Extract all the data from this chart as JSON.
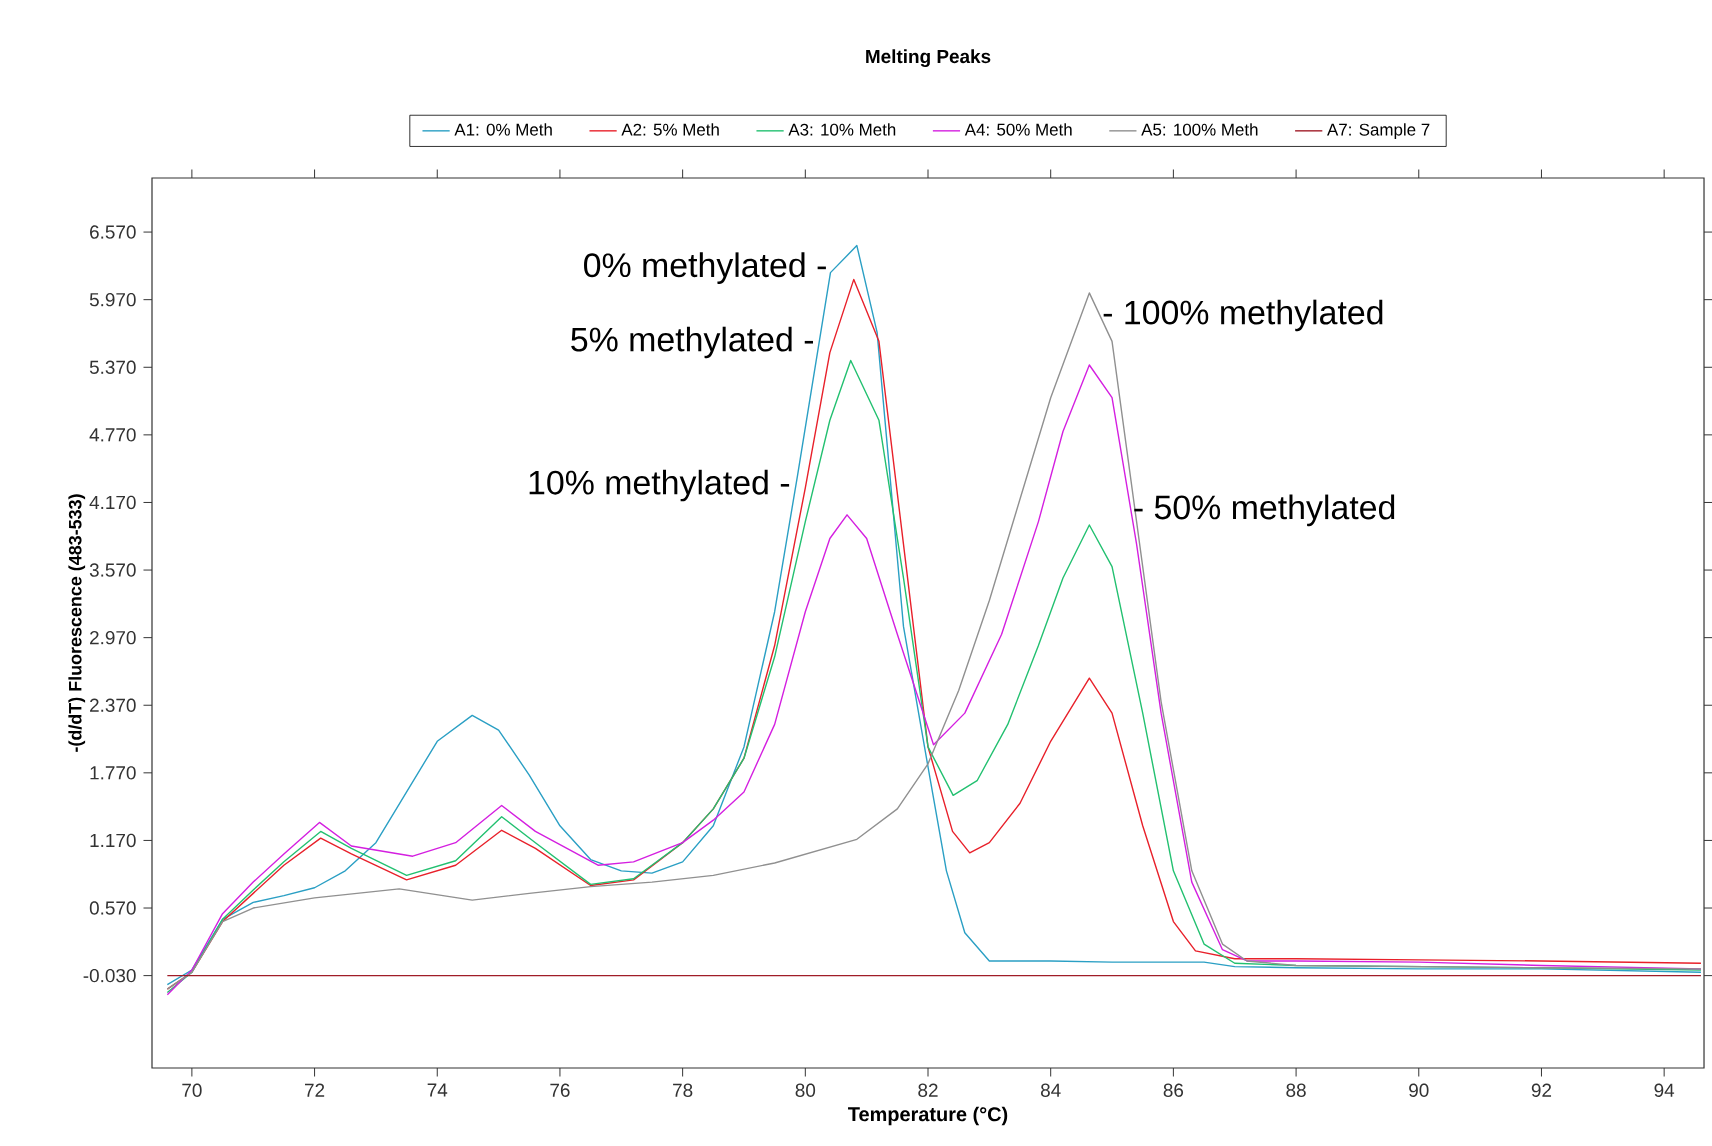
{
  "chart_data": {
    "type": "line",
    "title": "Melting Peaks",
    "xlabel": "Temperature (°C)",
    "ylabel": "-(d/dT) Fluorescence (483-533)",
    "xlim": [
      69.35,
      94.65
    ],
    "ylim": [
      -0.85,
      7.05
    ],
    "xticks": [
      70,
      72,
      74,
      76,
      78,
      80,
      82,
      84,
      86,
      88,
      90,
      92,
      94
    ],
    "yticks": [
      {
        "value": -0.03,
        "label": "-0.030"
      },
      {
        "value": 0.57,
        "label": "0.570"
      },
      {
        "value": 1.17,
        "label": "1.170"
      },
      {
        "value": 1.77,
        "label": "1.770"
      },
      {
        "value": 2.37,
        "label": "2.370"
      },
      {
        "value": 2.97,
        "label": "2.970"
      },
      {
        "value": 3.57,
        "label": "3.570"
      },
      {
        "value": 4.17,
        "label": "4.170"
      },
      {
        "value": 4.77,
        "label": "4.770"
      },
      {
        "value": 5.37,
        "label": "5.370"
      },
      {
        "value": 5.97,
        "label": "5.970"
      },
      {
        "value": 6.57,
        "label": "6.570"
      }
    ],
    "legend": "top",
    "marker": "none",
    "line_style": "solid",
    "series": [
      {
        "name": "A1: 0% Meth",
        "color": "#2a9fc4",
        "x": [
          69.6,
          70.0,
          70.5,
          71.0,
          71.5,
          72.0,
          72.5,
          73.0,
          73.5,
          74.0,
          74.57,
          75.0,
          75.5,
          76.0,
          76.5,
          77.0,
          77.5,
          78.0,
          78.5,
          79.0,
          79.5,
          79.87,
          80.41,
          80.84,
          81.17,
          81.6,
          82.03,
          82.3,
          82.6,
          83.0,
          84.0,
          85.0,
          86.5,
          87.0,
          88,
          90,
          92,
          94.6
        ],
        "values": [
          -0.11,
          0.02,
          0.47,
          0.62,
          0.68,
          0.75,
          0.9,
          1.15,
          1.6,
          2.05,
          2.28,
          2.15,
          1.75,
          1.3,
          1.0,
          0.9,
          0.88,
          0.98,
          1.3,
          2.0,
          3.2,
          4.4,
          6.21,
          6.45,
          5.68,
          3.07,
          1.73,
          0.9,
          0.35,
          0.1,
          0.1,
          0.09,
          0.09,
          0.05,
          0.04,
          0.03,
          0.03,
          0.0
        ]
      },
      {
        "name": "A2: 5% Meth",
        "color": "#e8202a",
        "x": [
          69.6,
          70.0,
          70.5,
          71.0,
          71.5,
          72.1,
          72.6,
          73.5,
          74.3,
          75.05,
          75.6,
          76.5,
          77.2,
          78.0,
          78.5,
          79.0,
          79.5,
          80.0,
          80.4,
          80.79,
          81.2,
          81.6,
          82.0,
          82.4,
          82.68,
          83.0,
          83.5,
          84.0,
          84.63,
          85.0,
          85.5,
          86.0,
          86.36,
          87.0,
          88,
          90,
          92,
          94.6
        ],
        "values": [
          -0.15,
          0.0,
          0.45,
          0.7,
          0.95,
          1.19,
          1.05,
          0.82,
          0.95,
          1.26,
          1.1,
          0.77,
          0.82,
          1.15,
          1.45,
          1.9,
          2.9,
          4.3,
          5.5,
          6.15,
          5.6,
          3.8,
          2.0,
          1.25,
          1.06,
          1.15,
          1.5,
          2.05,
          2.61,
          2.3,
          1.3,
          0.45,
          0.19,
          0.12,
          0.12,
          0.11,
          0.1,
          0.08
        ]
      },
      {
        "name": "A3: 10% Meth",
        "color": "#22c070",
        "x": [
          69.6,
          70.0,
          70.5,
          71.0,
          71.5,
          72.1,
          72.6,
          73.5,
          74.3,
          75.05,
          75.6,
          76.5,
          77.2,
          78.0,
          78.5,
          79.0,
          79.5,
          80.0,
          80.4,
          80.74,
          81.2,
          81.6,
          82.0,
          82.41,
          82.8,
          83.3,
          83.8,
          84.2,
          84.63,
          85.0,
          85.5,
          86.0,
          86.5,
          87.0,
          88,
          90,
          92,
          94.6
        ],
        "values": [
          -0.18,
          0.0,
          0.47,
          0.73,
          0.98,
          1.25,
          1.1,
          0.86,
          0.99,
          1.38,
          1.15,
          0.78,
          0.83,
          1.15,
          1.45,
          1.9,
          2.8,
          4.0,
          4.9,
          5.43,
          4.9,
          3.5,
          2.0,
          1.57,
          1.7,
          2.2,
          2.9,
          3.5,
          3.97,
          3.6,
          2.3,
          0.9,
          0.25,
          0.08,
          0.06,
          0.05,
          0.04,
          0.02
        ]
      },
      {
        "name": "A4: 50% Meth",
        "color": "#d41fe0",
        "x": [
          69.6,
          70.0,
          70.5,
          71.0,
          71.5,
          72.08,
          72.6,
          73.6,
          74.3,
          75.05,
          75.6,
          76.62,
          77.2,
          78.0,
          78.5,
          79.0,
          79.5,
          80.0,
          80.4,
          80.68,
          81.0,
          81.5,
          82.09,
          82.6,
          83.2,
          83.8,
          84.2,
          84.63,
          85.0,
          85.4,
          85.8,
          86.3,
          86.8,
          87.2,
          88,
          90,
          92,
          94.6
        ],
        "values": [
          -0.2,
          0.02,
          0.52,
          0.8,
          1.05,
          1.33,
          1.12,
          1.03,
          1.15,
          1.48,
          1.25,
          0.95,
          0.98,
          1.15,
          1.35,
          1.6,
          2.2,
          3.2,
          3.85,
          4.06,
          3.85,
          3.0,
          2.02,
          2.3,
          3.0,
          4.0,
          4.8,
          5.39,
          5.1,
          3.8,
          2.3,
          0.8,
          0.2,
          0.1,
          0.1,
          0.09,
          0.06,
          0.03
        ]
      },
      {
        "name": "A5: 100% Meth",
        "color": "#909090",
        "x": [
          69.6,
          70.0,
          70.5,
          71.0,
          72.0,
          73.38,
          74.57,
          75.5,
          76.5,
          77.5,
          78.5,
          79.5,
          80.84,
          81.5,
          82.0,
          82.5,
          83.0,
          83.5,
          84.0,
          84.63,
          85.0,
          85.4,
          85.8,
          86.3,
          86.8,
          87.2,
          88,
          90,
          92,
          94.6
        ],
        "values": [
          -0.15,
          0.0,
          0.45,
          0.57,
          0.66,
          0.74,
          0.64,
          0.7,
          0.76,
          0.8,
          0.86,
          0.97,
          1.18,
          1.45,
          1.85,
          2.5,
          3.3,
          4.2,
          5.1,
          6.03,
          5.6,
          4.0,
          2.4,
          0.9,
          0.25,
          0.1,
          0.06,
          0.05,
          0.04,
          0.03
        ]
      },
      {
        "name": "A7: Sample 7",
        "color": "#a01c28",
        "x": [
          69.6,
          94.6
        ],
        "values": [
          -0.03,
          -0.03
        ]
      }
    ],
    "annotations": [
      {
        "text": "0% methylated -",
        "x": 80.4,
        "y": 6.25
      },
      {
        "text": "5% methylated -",
        "x": 80.19,
        "y": 5.59
      },
      {
        "text": "10% methylated -",
        "x": 79.8,
        "y": 4.32
      },
      {
        "text": "- 100% methylated",
        "x": 84.8,
        "y": 5.83
      },
      {
        "text": "- 50% methylated",
        "x": 85.3,
        "y": 4.1
      }
    ]
  }
}
